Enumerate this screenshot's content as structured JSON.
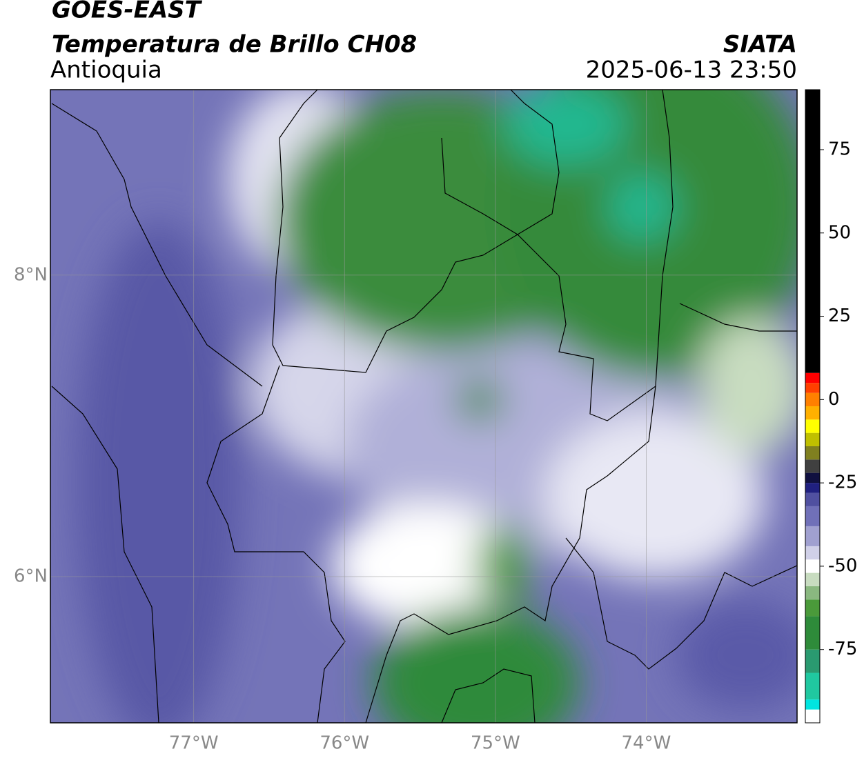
{
  "header": {
    "title": "GOES-EAST",
    "subtitle": "Temperatura de Brillo CH08",
    "region": "Antioquia",
    "source": "SIATA",
    "datetime": "2025-06-13 23:50"
  },
  "map": {
    "xlim": [
      -77.95,
      -73.0
    ],
    "ylim": [
      5.03,
      9.23
    ],
    "xticks": [
      {
        "value": -77,
        "label": "77°W"
      },
      {
        "value": -76,
        "label": "76°W"
      },
      {
        "value": -75,
        "label": "75°W"
      },
      {
        "value": -74,
        "label": "74°W"
      }
    ],
    "yticks": [
      {
        "value": 8,
        "label": "8°N"
      },
      {
        "value": 6,
        "label": "6°N"
      }
    ],
    "grid": true
  },
  "colorbar": {
    "lim": [
      -97,
      93
    ],
    "ticks": [
      -75,
      -50,
      -25,
      0,
      25,
      50,
      75
    ],
    "bands": [
      {
        "value": -97,
        "color": "#ffffff"
      },
      {
        "value": -93,
        "color": "#00e5e0"
      },
      {
        "value": -90,
        "color": "#20c8a0"
      },
      {
        "value": -82,
        "color": "#2a9a70"
      },
      {
        "value": -75,
        "color": "#2e8b3a"
      },
      {
        "value": -65,
        "color": "#4a9a3a"
      },
      {
        "value": -60,
        "color": "#8ab880"
      },
      {
        "value": -56,
        "color": "#c8dcc0"
      },
      {
        "value": -52,
        "color": "#ffffff"
      },
      {
        "value": -48,
        "color": "#d0d0e8"
      },
      {
        "value": -44,
        "color": "#a0a0d0"
      },
      {
        "value": -38,
        "color": "#7070b8"
      },
      {
        "value": -32,
        "color": "#5050a0"
      },
      {
        "value": -28,
        "color": "#202080"
      },
      {
        "value": -25,
        "color": "#101040"
      },
      {
        "value": -22,
        "color": "#404040"
      },
      {
        "value": -18,
        "color": "#808020"
      },
      {
        "value": -14,
        "color": "#c0c000"
      },
      {
        "value": -10,
        "color": "#ffff00"
      },
      {
        "value": -6,
        "color": "#ffb000"
      },
      {
        "value": -2,
        "color": "#ff8000"
      },
      {
        "value": 2,
        "color": "#ff4000"
      },
      {
        "value": 5,
        "color": "#ff0000"
      },
      {
        "value": 8,
        "color": "#000000"
      }
    ]
  }
}
